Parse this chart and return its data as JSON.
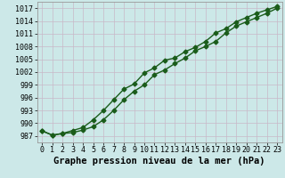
{
  "x": [
    0,
    1,
    2,
    3,
    4,
    5,
    6,
    7,
    8,
    9,
    10,
    11,
    12,
    13,
    14,
    15,
    16,
    17,
    18,
    19,
    20,
    21,
    22,
    23
  ],
  "upper_line": [
    988.2,
    987.2,
    987.6,
    988.3,
    989.0,
    990.8,
    993.0,
    995.5,
    998.0,
    999.2,
    1001.8,
    1003.0,
    1004.8,
    1005.3,
    1006.8,
    1007.8,
    1009.2,
    1011.2,
    1012.2,
    1013.8,
    1014.8,
    1015.8,
    1016.6,
    1017.4
  ],
  "lower_line": [
    988.2,
    987.2,
    987.6,
    987.8,
    988.4,
    989.2,
    990.8,
    993.0,
    995.5,
    997.5,
    999.0,
    1001.4,
    1002.5,
    1004.0,
    1005.3,
    1007.0,
    1008.0,
    1009.2,
    1011.2,
    1012.8,
    1013.8,
    1014.8,
    1015.8,
    1017.0
  ],
  "line_color": "#1a5c1a",
  "bg_color": "#cce8e8",
  "grid_color": "#c8b8c8",
  "ylabel_ticks": [
    987,
    990,
    993,
    996,
    999,
    1002,
    1005,
    1008,
    1011,
    1014,
    1017
  ],
  "ylim": [
    985.5,
    1018.5
  ],
  "xlim": [
    -0.5,
    23.5
  ],
  "xlabel": "Graphe pression niveau de la mer (hPa)",
  "title_fontsize": 7.5,
  "tick_fontsize": 6.0,
  "marker": "D",
  "markersize": 2.5,
  "linewidth": 1.0
}
